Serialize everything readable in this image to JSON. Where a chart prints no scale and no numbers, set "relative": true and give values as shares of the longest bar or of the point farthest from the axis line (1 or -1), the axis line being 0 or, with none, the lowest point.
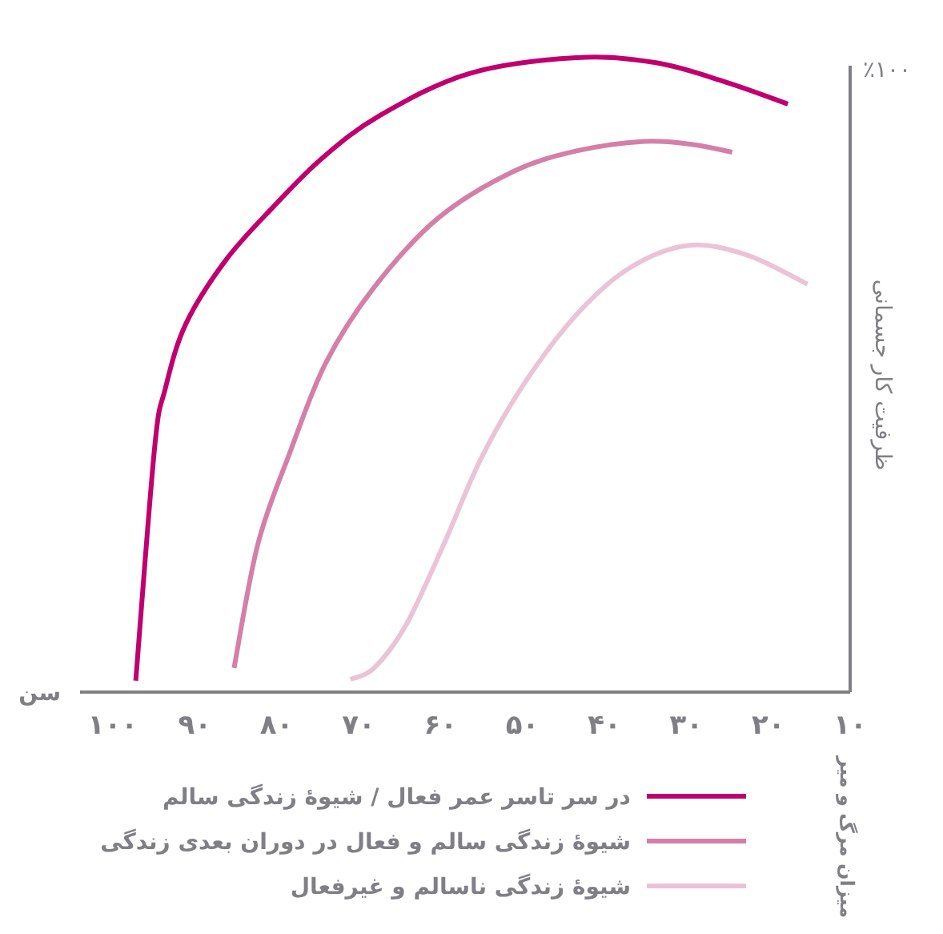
{
  "chart_data": {
    "type": "line",
    "relative": true,
    "xlabel": "سن",
    "ylabel": "ظرفیت کار جسمانی",
    "annotations": [
      "٪۱۰۰",
      "میزان مرگ و میر"
    ],
    "xlim": [
      104,
      10
    ],
    "xticks": [
      {
        "value": 100,
        "label": "۱۰۰"
      },
      {
        "value": 90,
        "label": "۹۰"
      },
      {
        "value": 80,
        "label": "۸۰"
      },
      {
        "value": 70,
        "label": "۷۰"
      },
      {
        "value": 60,
        "label": "۶۰"
      },
      {
        "value": 50,
        "label": "۵۰"
      },
      {
        "value": 40,
        "label": "۴۰"
      },
      {
        "value": 30,
        "label": "۳۰"
      },
      {
        "value": 20,
        "label": "۲۰"
      },
      {
        "value": 10,
        "label": "۱۰"
      }
    ],
    "legend": "bottom",
    "line_style": "solid",
    "marker": "none",
    "grid": false,
    "series": [
      {
        "name": "در سر تاسر عمر فعال / شیوهٔ زندگی سالم",
        "color": "#c0006f",
        "x": [
          97.2,
          94.9,
          93.6,
          91.1,
          86.2,
          80.4,
          74.5,
          67.4,
          56.5,
          43.4,
          33.7,
          25.3,
          17.6
        ],
        "values": [
          0.018,
          0.385,
          0.478,
          0.58,
          0.681,
          0.765,
          0.841,
          0.909,
          0.975,
          1.0,
          0.992,
          0.962,
          0.927
        ]
      },
      {
        "name": "شیوهٔ زندگی سالم و فعال در دوران بعدی زندگی",
        "color": "#d47fa8",
        "x": [
          85.2,
          82.3,
          78.4,
          74.0,
          68.1,
          60.3,
          51.2,
          43.4,
          35.1,
          29.2,
          24.4
        ],
        "values": [
          0.038,
          0.233,
          0.377,
          0.519,
          0.638,
          0.747,
          0.82,
          0.853,
          0.868,
          0.863,
          0.851
        ]
      },
      {
        "name": "شیوهٔ زندگی ناسالم و غیرفعال",
        "color": "#eac4d6",
        "x": [
          71.0,
          68.1,
          64.2,
          59.6,
          55.1,
          49.8,
          43.4,
          37.0,
          29.8,
          22.6,
          15.2
        ],
        "values": [
          0.02,
          0.038,
          0.106,
          0.233,
          0.367,
          0.486,
          0.595,
          0.668,
          0.704,
          0.689,
          0.643
        ]
      }
    ]
  }
}
